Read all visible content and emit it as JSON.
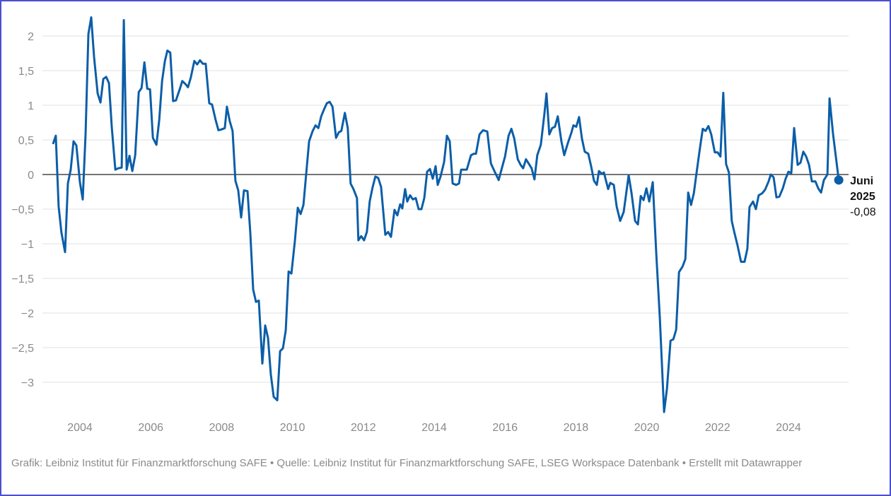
{
  "chart_data": {
    "type": "line",
    "title": "",
    "xlabel": "",
    "ylabel": "",
    "xlim": [
      2003.24,
      2025.42
    ],
    "ylim": [
      -3.5,
      2.3
    ],
    "grid": true,
    "y_ticks": [
      2,
      1.5,
      1,
      0.5,
      0,
      -0.5,
      -1,
      -1.5,
      -2,
      -2.5,
      -3
    ],
    "y_tick_labels": [
      "2",
      "1,5",
      "1",
      "0,5",
      "0",
      "−0,5",
      "−1",
      "−1,5",
      "−2",
      "−2,5",
      "−3"
    ],
    "x_ticks": [
      2004,
      2006,
      2008,
      2010,
      2012,
      2014,
      2016,
      2018,
      2020,
      2022,
      2024
    ],
    "x_tick_labels": [
      "2004",
      "2006",
      "2008",
      "2010",
      "2012",
      "2014",
      "2016",
      "2018",
      "2020",
      "2022",
      "2024"
    ],
    "series": [
      {
        "name": "Index",
        "color": "#0b5ea8",
        "points": [
          [
            2003.24,
            0.44
          ],
          [
            2003.32,
            0.56
          ],
          [
            2003.4,
            -0.46
          ],
          [
            2003.48,
            -0.84
          ],
          [
            2003.58,
            -1.12
          ],
          [
            2003.66,
            -0.13
          ],
          [
            2003.74,
            0.07
          ],
          [
            2003.82,
            0.48
          ],
          [
            2003.9,
            0.42
          ],
          [
            2004.0,
            -0.11
          ],
          [
            2004.08,
            -0.36
          ],
          [
            2004.16,
            0.58
          ],
          [
            2004.24,
            2.03
          ],
          [
            2004.32,
            2.27
          ],
          [
            2004.4,
            1.7
          ],
          [
            2004.5,
            1.17
          ],
          [
            2004.58,
            1.04
          ],
          [
            2004.66,
            1.38
          ],
          [
            2004.74,
            1.41
          ],
          [
            2004.82,
            1.32
          ],
          [
            2004.9,
            0.68
          ],
          [
            2005.0,
            0.07
          ],
          [
            2005.08,
            0.09
          ],
          [
            2005.18,
            0.1
          ],
          [
            2005.24,
            2.23
          ],
          [
            2005.32,
            0.07
          ],
          [
            2005.4,
            0.27
          ],
          [
            2005.48,
            0.05
          ],
          [
            2005.56,
            0.28
          ],
          [
            2005.66,
            1.19
          ],
          [
            2005.74,
            1.25
          ],
          [
            2005.82,
            1.62
          ],
          [
            2005.9,
            1.24
          ],
          [
            2005.98,
            1.23
          ],
          [
            2006.06,
            0.53
          ],
          [
            2006.16,
            0.43
          ],
          [
            2006.24,
            0.79
          ],
          [
            2006.32,
            1.35
          ],
          [
            2006.4,
            1.64
          ],
          [
            2006.47,
            1.79
          ],
          [
            2006.55,
            1.76
          ],
          [
            2006.63,
            1.06
          ],
          [
            2006.71,
            1.07
          ],
          [
            2006.81,
            1.22
          ],
          [
            2006.89,
            1.35
          ],
          [
            2006.99,
            1.3
          ],
          [
            2007.05,
            1.26
          ],
          [
            2007.13,
            1.4
          ],
          [
            2007.23,
            1.64
          ],
          [
            2007.31,
            1.59
          ],
          [
            2007.39,
            1.65
          ],
          [
            2007.47,
            1.6
          ],
          [
            2007.55,
            1.6
          ],
          [
            2007.65,
            1.03
          ],
          [
            2007.73,
            1.01
          ],
          [
            2007.83,
            0.79
          ],
          [
            2007.91,
            0.64
          ],
          [
            2007.99,
            0.65
          ],
          [
            2008.09,
            0.67
          ],
          [
            2008.15,
            0.98
          ],
          [
            2008.23,
            0.77
          ],
          [
            2008.31,
            0.63
          ],
          [
            2008.39,
            -0.09
          ],
          [
            2008.47,
            -0.23
          ],
          [
            2008.55,
            -0.62
          ],
          [
            2008.63,
            -0.23
          ],
          [
            2008.73,
            -0.24
          ],
          [
            2008.81,
            -0.85
          ],
          [
            2008.89,
            -1.66
          ],
          [
            2008.97,
            -1.84
          ],
          [
            2009.05,
            -1.82
          ],
          [
            2009.15,
            -2.73
          ],
          [
            2009.23,
            -2.18
          ],
          [
            2009.31,
            -2.36
          ],
          [
            2009.39,
            -2.89
          ],
          [
            2009.47,
            -3.21
          ],
          [
            2009.57,
            -3.26
          ],
          [
            2009.65,
            -2.55
          ],
          [
            2009.73,
            -2.51
          ],
          [
            2009.81,
            -2.25
          ],
          [
            2009.89,
            -1.4
          ],
          [
            2009.97,
            -1.43
          ],
          [
            2010.07,
            -0.95
          ],
          [
            2010.15,
            -0.48
          ],
          [
            2010.23,
            -0.57
          ],
          [
            2010.31,
            -0.44
          ],
          [
            2010.39,
            0.02
          ],
          [
            2010.47,
            0.48
          ],
          [
            2010.57,
            0.63
          ],
          [
            2010.65,
            0.71
          ],
          [
            2010.73,
            0.67
          ],
          [
            2010.81,
            0.84
          ],
          [
            2010.89,
            0.94
          ],
          [
            2010.97,
            1.03
          ],
          [
            2011.05,
            1.05
          ],
          [
            2011.13,
            0.98
          ],
          [
            2011.23,
            0.53
          ],
          [
            2011.31,
            0.61
          ],
          [
            2011.38,
            0.63
          ],
          [
            2011.48,
            0.89
          ],
          [
            2011.56,
            0.67
          ],
          [
            2011.64,
            -0.13
          ],
          [
            2011.72,
            -0.21
          ],
          [
            2011.82,
            -0.34
          ],
          [
            2011.86,
            -0.95
          ],
          [
            2011.94,
            -0.89
          ],
          [
            2012.02,
            -0.95
          ],
          [
            2012.1,
            -0.83
          ],
          [
            2012.18,
            -0.39
          ],
          [
            2012.26,
            -0.19
          ],
          [
            2012.34,
            -0.03
          ],
          [
            2012.42,
            -0.05
          ],
          [
            2012.5,
            -0.18
          ],
          [
            2012.62,
            -0.87
          ],
          [
            2012.7,
            -0.83
          ],
          [
            2012.78,
            -0.9
          ],
          [
            2012.88,
            -0.51
          ],
          [
            2012.96,
            -0.59
          ],
          [
            2013.04,
            -0.43
          ],
          [
            2013.1,
            -0.49
          ],
          [
            2013.18,
            -0.21
          ],
          [
            2013.24,
            -0.39
          ],
          [
            2013.32,
            -0.3
          ],
          [
            2013.4,
            -0.36
          ],
          [
            2013.48,
            -0.34
          ],
          [
            2013.56,
            -0.5
          ],
          [
            2013.64,
            -0.5
          ],
          [
            2013.72,
            -0.34
          ],
          [
            2013.8,
            0.04
          ],
          [
            2013.88,
            0.08
          ],
          [
            2013.96,
            -0.06
          ],
          [
            2014.04,
            0.12
          ],
          [
            2014.1,
            -0.15
          ],
          [
            2014.18,
            -0.03
          ],
          [
            2014.28,
            0.18
          ],
          [
            2014.36,
            0.56
          ],
          [
            2014.44,
            0.48
          ],
          [
            2014.52,
            -0.13
          ],
          [
            2014.62,
            -0.15
          ],
          [
            2014.7,
            -0.13
          ],
          [
            2014.76,
            0.07
          ],
          [
            2014.92,
            0.07
          ],
          [
            2015.04,
            0.28
          ],
          [
            2015.12,
            0.3
          ],
          [
            2015.18,
            0.3
          ],
          [
            2015.28,
            0.58
          ],
          [
            2015.38,
            0.64
          ],
          [
            2015.5,
            0.62
          ],
          [
            2015.6,
            0.16
          ],
          [
            2015.68,
            0.07
          ],
          [
            2015.82,
            -0.08
          ],
          [
            2015.92,
            0.11
          ],
          [
            2016.0,
            0.26
          ],
          [
            2016.1,
            0.56
          ],
          [
            2016.18,
            0.66
          ],
          [
            2016.26,
            0.52
          ],
          [
            2016.36,
            0.22
          ],
          [
            2016.44,
            0.14
          ],
          [
            2016.51,
            0.09
          ],
          [
            2016.59,
            0.22
          ],
          [
            2016.69,
            0.14
          ],
          [
            2016.75,
            0.09
          ],
          [
            2016.83,
            -0.07
          ],
          [
            2016.91,
            0.28
          ],
          [
            2017.01,
            0.43
          ],
          [
            2017.11,
            0.87
          ],
          [
            2017.17,
            1.17
          ],
          [
            2017.25,
            0.58
          ],
          [
            2017.33,
            0.67
          ],
          [
            2017.41,
            0.69
          ],
          [
            2017.49,
            0.84
          ],
          [
            2017.59,
            0.48
          ],
          [
            2017.67,
            0.28
          ],
          [
            2017.77,
            0.45
          ],
          [
            2017.87,
            0.6
          ],
          [
            2017.93,
            0.71
          ],
          [
            2018.01,
            0.69
          ],
          [
            2018.09,
            0.83
          ],
          [
            2018.17,
            0.52
          ],
          [
            2018.25,
            0.33
          ],
          [
            2018.35,
            0.3
          ],
          [
            2018.43,
            0.12
          ],
          [
            2018.51,
            -0.09
          ],
          [
            2018.59,
            -0.15
          ],
          [
            2018.65,
            0.05
          ],
          [
            2018.73,
            0.01
          ],
          [
            2018.79,
            0.03
          ],
          [
            2018.91,
            -0.21
          ],
          [
            2018.97,
            -0.12
          ],
          [
            2019.07,
            -0.15
          ],
          [
            2019.15,
            -0.46
          ],
          [
            2019.25,
            -0.67
          ],
          [
            2019.35,
            -0.54
          ],
          [
            2019.49,
            -0.01
          ],
          [
            2019.57,
            -0.27
          ],
          [
            2019.67,
            -0.67
          ],
          [
            2019.75,
            -0.72
          ],
          [
            2019.83,
            -0.31
          ],
          [
            2019.91,
            -0.37
          ],
          [
            2019.99,
            -0.2
          ],
          [
            2020.07,
            -0.39
          ],
          [
            2020.17,
            -0.11
          ],
          [
            2020.27,
            -1.15
          ],
          [
            2020.37,
            -2.07
          ],
          [
            2020.49,
            -3.43
          ],
          [
            2020.57,
            -3.09
          ],
          [
            2020.67,
            -2.4
          ],
          [
            2020.75,
            -2.38
          ],
          [
            2020.83,
            -2.24
          ],
          [
            2020.91,
            -1.41
          ],
          [
            2021.01,
            -1.33
          ],
          [
            2021.09,
            -1.22
          ],
          [
            2021.17,
            -0.26
          ],
          [
            2021.25,
            -0.44
          ],
          [
            2021.33,
            -0.27
          ],
          [
            2021.4,
            0.0
          ],
          [
            2021.5,
            0.38
          ],
          [
            2021.58,
            0.66
          ],
          [
            2021.66,
            0.63
          ],
          [
            2021.74,
            0.7
          ],
          [
            2021.82,
            0.58
          ],
          [
            2021.92,
            0.32
          ],
          [
            2022.0,
            0.32
          ],
          [
            2022.08,
            0.26
          ],
          [
            2022.16,
            1.18
          ],
          [
            2022.24,
            0.15
          ],
          [
            2022.32,
            0.03
          ],
          [
            2022.4,
            -0.67
          ],
          [
            2022.48,
            -0.85
          ],
          [
            2022.56,
            -1.02
          ],
          [
            2022.66,
            -1.26
          ],
          [
            2022.76,
            -1.26
          ],
          [
            2022.84,
            -1.07
          ],
          [
            2022.9,
            -0.47
          ],
          [
            2023.0,
            -0.39
          ],
          [
            2023.08,
            -0.5
          ],
          [
            2023.16,
            -0.3
          ],
          [
            2023.26,
            -0.27
          ],
          [
            2023.34,
            -0.22
          ],
          [
            2023.44,
            -0.1
          ],
          [
            2023.5,
            0.0
          ],
          [
            2023.58,
            -0.04
          ],
          [
            2023.66,
            -0.33
          ],
          [
            2023.74,
            -0.32
          ],
          [
            2023.84,
            -0.2
          ],
          [
            2023.92,
            -0.06
          ],
          [
            2024.0,
            0.04
          ],
          [
            2024.08,
            0.02
          ],
          [
            2024.16,
            0.67
          ],
          [
            2024.26,
            0.14
          ],
          [
            2024.34,
            0.17
          ],
          [
            2024.42,
            0.33
          ],
          [
            2024.5,
            0.26
          ],
          [
            2024.58,
            0.14
          ],
          [
            2024.66,
            -0.1
          ],
          [
            2024.76,
            -0.1
          ],
          [
            2024.84,
            -0.2
          ],
          [
            2024.92,
            -0.26
          ],
          [
            2025.0,
            -0.08
          ],
          [
            2025.1,
            0.0
          ],
          [
            2025.16,
            1.1
          ],
          [
            2025.26,
            0.58
          ],
          [
            2025.42,
            -0.08
          ]
        ]
      }
    ],
    "annotation": {
      "label_line1": "Juni",
      "label_line2": "2025",
      "value_label": "-0,08",
      "x": 2025.42,
      "y": -0.08
    }
  },
  "footer": {
    "text": "Grafik: Leibniz Institut für Finanzmarktforschung SAFE • Quelle: Leibniz Institut für Finanzmarktforschung SAFE, LSEG Workspace Datenbank • Erstellt mit Datawrapper"
  }
}
